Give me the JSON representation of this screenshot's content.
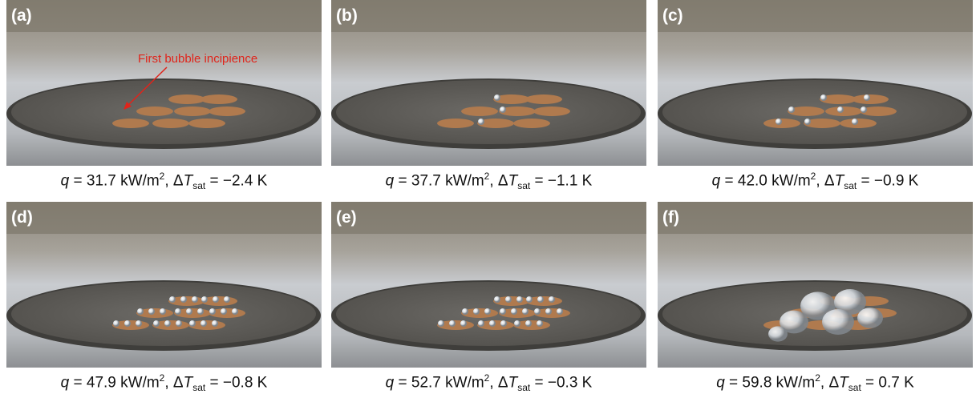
{
  "panels": [
    {
      "label": "(a)",
      "caption": [
        "q",
        " = 31.7 kW/m",
        "2",
        ", Δ",
        "T",
        "sat",
        " = −2.4 K"
      ],
      "annotation": "First bubble incipience"
    },
    {
      "label": "(b)",
      "caption": [
        "q",
        " = 37.7 kW/m",
        "2",
        ", Δ",
        "T",
        "sat",
        " = −1.1 K"
      ]
    },
    {
      "label": "(c)",
      "caption": [
        "q",
        " = 42.0 kW/m",
        "2",
        ", Δ",
        "T",
        "sat",
        " = −0.9 K"
      ]
    },
    {
      "label": "(d)",
      "caption": [
        "q",
        " = 47.9 kW/m",
        "2",
        ", Δ",
        "T",
        "sat",
        " = −0.8 K"
      ]
    },
    {
      "label": "(e)",
      "caption": [
        "q",
        " = 52.7 kW/m",
        "2",
        ", Δ",
        "T",
        "sat",
        " = −0.3 K"
      ]
    },
    {
      "label": "(f)",
      "caption": [
        "q",
        " = 59.8 kW/m",
        "2",
        ", Δ",
        "T",
        "sat",
        " = 0.7 K"
      ]
    }
  ]
}
